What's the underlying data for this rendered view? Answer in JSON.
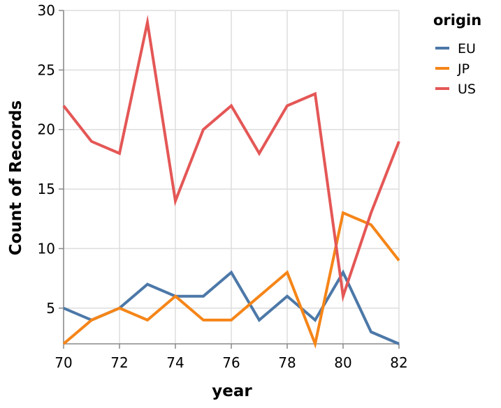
{
  "chart_data": {
    "type": "line",
    "xlabel": "year",
    "ylabel": "Count of Records",
    "x": [
      70,
      71,
      72,
      73,
      74,
      75,
      76,
      77,
      78,
      79,
      80,
      81,
      82
    ],
    "x_ticks": [
      70,
      72,
      74,
      76,
      78,
      80,
      82
    ],
    "x_tick_labels": [
      "70",
      "72",
      "74",
      "76",
      "78",
      "80",
      "82"
    ],
    "xlim": [
      70,
      82
    ],
    "ylim": [
      2,
      30
    ],
    "y_ticks": [
      5,
      10,
      15,
      20,
      25,
      30
    ],
    "y_tick_labels": [
      "5",
      "10",
      "15",
      "20",
      "25",
      "30"
    ],
    "grid": true,
    "legend": {
      "title": "origin",
      "placement": "right",
      "entries": [
        "EU",
        "JP",
        "US"
      ]
    },
    "series": [
      {
        "name": "EU",
        "color": "#4c78a8",
        "values": [
          5,
          4,
          5,
          7,
          6,
          6,
          8,
          4,
          6,
          4,
          8,
          3,
          2
        ]
      },
      {
        "name": "JP",
        "color": "#f58518",
        "values": [
          2,
          4,
          5,
          4,
          6,
          4,
          4,
          6,
          8,
          2,
          13,
          12,
          9
        ]
      },
      {
        "name": "US",
        "color": "#e45756",
        "values": [
          22,
          19,
          18,
          29,
          14,
          20,
          22,
          18,
          22,
          23,
          6,
          13,
          19
        ]
      }
    ]
  }
}
